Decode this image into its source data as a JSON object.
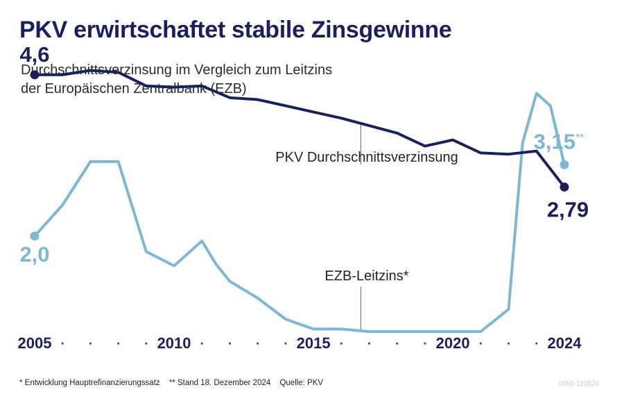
{
  "title": "PKV erwirtschaftet stabile Zinsgewinne",
  "subtitle": [
    "Durchschnittsverzinsung im Vergleich zum Leitzins",
    "der Europäischen Zentralbank (EZB)"
  ],
  "chart_data": {
    "type": "line",
    "title": "PKV erwirtschaftet stabile Zinsgewinne",
    "subtitle": "Durchschnittsverzinsung im Vergleich zum Leitzins der Europäischen Zentralbank (EZB)",
    "x_tick_labels": [
      "2005",
      "2010",
      "2015",
      "2020",
      "2024"
    ],
    "xlim": [
      2005,
      2024
    ],
    "ylim": [
      0,
      5
    ],
    "grid": false,
    "series": [
      {
        "name": "PKV Durchschnittsverzinsung",
        "color": "#1c1f5e",
        "x": [
          2005,
          2006,
          2007,
          2008,
          2009,
          2010,
          2011,
          2012,
          2013,
          2014,
          2015,
          2016,
          2017,
          2018,
          2019,
          2020,
          2021,
          2022,
          2023,
          2024
        ],
        "values": [
          4.6,
          4.6,
          4.67,
          4.64,
          4.42,
          4.4,
          4.42,
          4.23,
          4.2,
          4.1,
          4.0,
          3.9,
          3.78,
          3.66,
          3.45,
          3.55,
          3.34,
          3.32,
          3.37,
          2.79
        ],
        "point_labels": [
          {
            "x": 2005,
            "text": "4,6"
          },
          {
            "x": 2024,
            "text": "2,79"
          }
        ],
        "annotation": "PKV Durchschnittsverzinsung"
      },
      {
        "name": "EZB-Leitzins*",
        "color": "#7cb7d6",
        "x": [
          2005,
          2006,
          2007,
          2008,
          2009,
          2010,
          2011,
          2011.5,
          2012,
          2013,
          2014,
          2015,
          2016,
          2017,
          2018,
          2019,
          2020,
          2021,
          2022,
          2022.5,
          2023,
          2023.5,
          2024
        ],
        "values": [
          2.0,
          2.5,
          3.2,
          3.2,
          1.75,
          1.52,
          1.92,
          1.55,
          1.27,
          1.0,
          0.66,
          0.5,
          0.5,
          0.46,
          0.46,
          0.46,
          0.46,
          0.46,
          0.82,
          3.5,
          4.3,
          4.1,
          3.15
        ],
        "point_labels": [
          {
            "x": 2005,
            "text": "2,0"
          },
          {
            "x": 2024,
            "text": "3,15",
            "suffix": "**"
          }
        ],
        "annotation": "EZB-Leitzins*"
      }
    ]
  },
  "footer": {
    "note1": "* Entwicklung Hauptrefinanzierungssatz",
    "note2": "** Stand 18. Dezember 2024",
    "source": "Quelle: PKV"
  },
  "code": "0060-110526"
}
